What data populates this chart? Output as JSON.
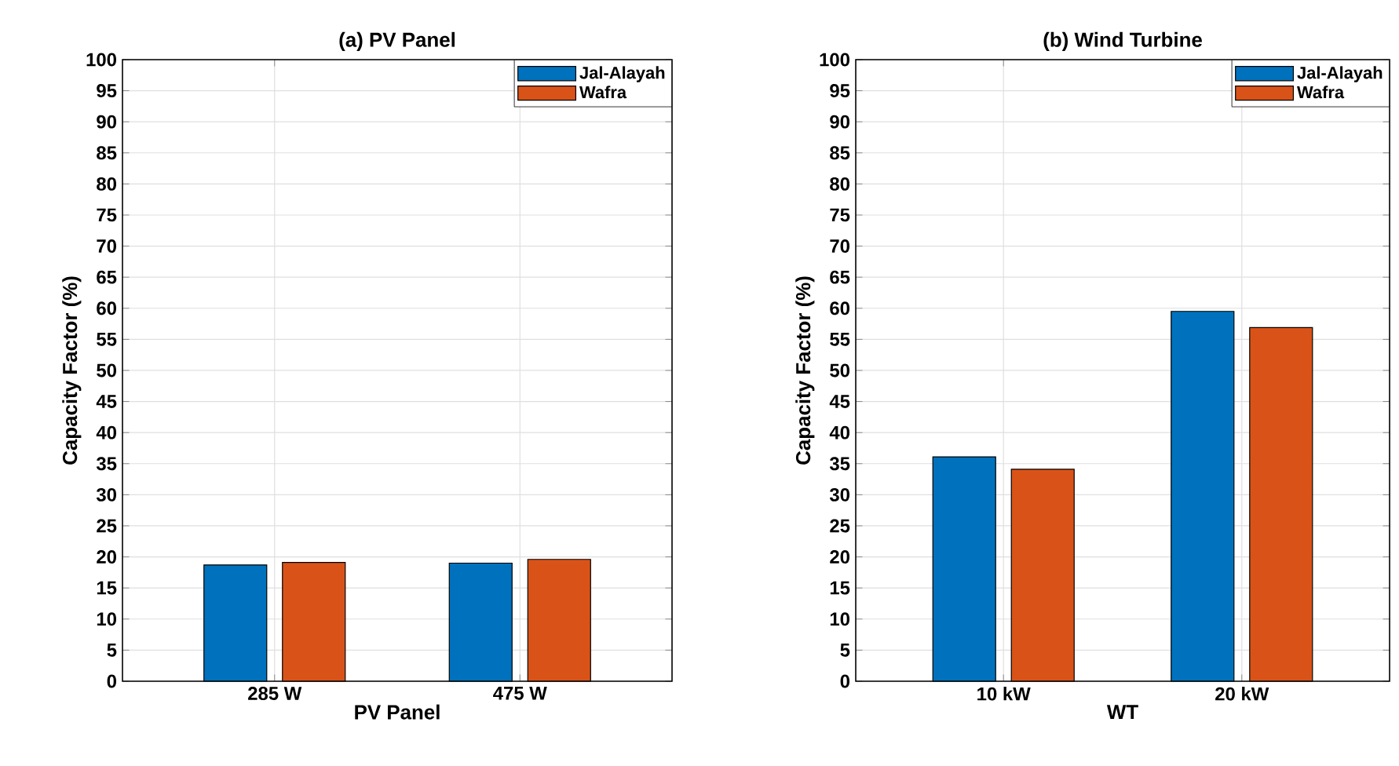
{
  "chart_data": [
    {
      "type": "bar",
      "title": "(a) PV Panel",
      "xlabel": "PV Panel",
      "ylabel": "Capacity Factor (%)",
      "categories": [
        "285 W",
        "475 W"
      ],
      "series": [
        {
          "name": "Jal-Alayah",
          "color": "#0072bd",
          "values": [
            18.7,
            19.0
          ]
        },
        {
          "name": "Wafra",
          "color": "#d95319",
          "values": [
            19.1,
            19.6
          ]
        }
      ],
      "ylim": [
        0,
        100
      ],
      "yticks": [
        0,
        5,
        10,
        15,
        20,
        25,
        30,
        35,
        40,
        45,
        50,
        55,
        60,
        65,
        70,
        75,
        80,
        85,
        90,
        95,
        100
      ],
      "grid": true,
      "legend": "top right"
    },
    {
      "type": "bar",
      "title": "(b) Wind Turbine",
      "xlabel": "WT",
      "ylabel": "Capacity Factor (%)",
      "categories": [
        "10 kW",
        "20 kW"
      ],
      "series": [
        {
          "name": "Jal-Alayah",
          "color": "#0072bd",
          "values": [
            36.1,
            59.5
          ]
        },
        {
          "name": "Wafra",
          "color": "#d95319",
          "values": [
            34.1,
            56.9
          ]
        }
      ],
      "ylim": [
        0,
        100
      ],
      "yticks": [
        0,
        5,
        10,
        15,
        20,
        25,
        30,
        35,
        40,
        45,
        50,
        55,
        60,
        65,
        70,
        75,
        80,
        85,
        90,
        95,
        100
      ],
      "grid": true,
      "legend": "top right"
    }
  ]
}
